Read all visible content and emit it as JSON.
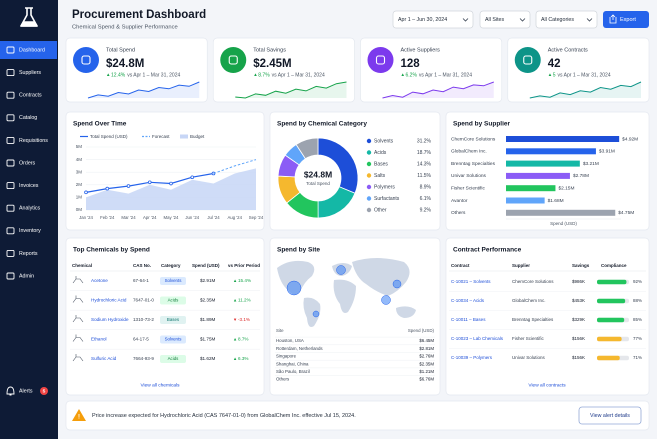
{
  "sidebar": {
    "nav": [
      "Dashboard",
      "Suppliers",
      "Contracts",
      "Catalog",
      "Requisitions",
      "Orders",
      "Invoices",
      "Analytics",
      "Inventory",
      "Reports",
      "Admin"
    ],
    "alerts": {
      "label": "Alerts",
      "count": "5"
    }
  },
  "header": {
    "title": "Procurement Dashboard",
    "subtitle": "Chemical Spend & Supplier Performance",
    "filters": [
      "Apr 1 – Jun 30, 2024",
      "All Sites",
      "All Categories"
    ],
    "export": "Export"
  },
  "kpis": [
    {
      "label": "Total Spend",
      "value": "$24.8M",
      "change": "12.4%",
      "compare": "vs Apr 1 – Mar 31, 2024",
      "color": "#2563eb",
      "trend": [
        3,
        4,
        3.6,
        4.8,
        4.3,
        5.6,
        5.1,
        6.4,
        6,
        7.2,
        6.8,
        8.2
      ]
    },
    {
      "label": "Total Savings",
      "value": "$2.45M",
      "change": "8.7%",
      "compare": "vs Apr 1 – Mar 31, 2024",
      "color": "#16a34a",
      "trend": [
        3.5,
        3.2,
        4.4,
        4,
        5.2,
        4.6,
        5.8,
        5.3,
        6.6,
        6.1,
        7.4,
        7.9
      ]
    },
    {
      "label": "Active Suppliers",
      "value": "128",
      "change": "6.2%",
      "compare": "vs Apr 1 – Mar 31, 2024",
      "color": "#7c3aed",
      "trend": [
        4,
        4.6,
        4.2,
        5.4,
        5,
        5.9,
        5.5,
        6.6,
        6.2,
        7.1,
        6.9,
        7.8
      ]
    },
    {
      "label": "Active Contracts",
      "value": "42",
      "change": "5",
      "compare": "vs Apr 1 – Mar 31, 2024",
      "color": "#0d9488",
      "trend": [
        3.8,
        4.3,
        4,
        5,
        4.6,
        5.5,
        5.2,
        6.3,
        5.9,
        6.8,
        6.5,
        7.6
      ]
    }
  ],
  "spend_over_time": {
    "type": "line",
    "title": "Spend Over Time",
    "categories": [
      "Jan '24",
      "Feb '24",
      "Mar '24",
      "Apr '24",
      "May '24",
      "Jun '24",
      "Jul '24",
      "Aug '24",
      "Sep '24"
    ],
    "series": [
      {
        "name": "Total Spend (USD)",
        "color": "#2563eb",
        "values": [
          1.4,
          1.7,
          1.9,
          2.2,
          2.1,
          2.6,
          2.9,
          null,
          null
        ]
      },
      {
        "name": "Forecast",
        "color": "#60a5fa",
        "values": [
          null,
          null,
          null,
          null,
          null,
          null,
          2.9,
          3.5,
          4.0
        ]
      },
      {
        "name": "Budget",
        "color": "#c7d6f6",
        "values": [
          1.0,
          1.6,
          1.3,
          2.0,
          1.6,
          2.4,
          2.1,
          2.9,
          3.3
        ]
      }
    ],
    "ylim": [
      0,
      5
    ],
    "yticks": [
      {
        "value": 0,
        "label": "0M"
      },
      {
        "value": 1,
        "label": "1M"
      },
      {
        "value": 2,
        "label": "2M"
      },
      {
        "value": 3,
        "label": "3M"
      },
      {
        "value": 4,
        "label": "4M"
      },
      {
        "value": 5,
        "label": "5M"
      }
    ]
  },
  "category_donut": {
    "type": "pie",
    "title": "Spend by Chemical Category",
    "center_value": "$24.8M",
    "center_label": "Total Spend",
    "categories": [
      "Solvents",
      "Acids",
      "Bases",
      "Salts",
      "Polymers",
      "Surfactants",
      "Other"
    ],
    "values": [
      31.2,
      18.7,
      14.3,
      11.5,
      8.9,
      6.1,
      9.2
    ],
    "value_labels": [
      "31.2%",
      "18.7%",
      "14.3%",
      "11.5%",
      "8.9%",
      "6.1%",
      "9.2%"
    ],
    "colors": [
      "#1d4ed8",
      "#14b8a6",
      "#22c55e",
      "#f5b82e",
      "#8b5cf6",
      "#60a5fa",
      "#9ca3af"
    ]
  },
  "supplier_bars": {
    "type": "bar",
    "title": "Spend by Supplier",
    "categories": [
      "ChemCore Solutions",
      "GlobalChem Inc.",
      "Brenntag Specialties",
      "Univar Solutions",
      "Fisher Scientific",
      "Avantor",
      "Others"
    ],
    "values": [
      4.92,
      3.91,
      3.21,
      2.78,
      2.15,
      1.68,
      4.75
    ],
    "value_labels": [
      "$4.92M",
      "$3.91M",
      "$3.21M",
      "$2.78M",
      "$2.15M",
      "$1.68M",
      "$4.75M"
    ],
    "colors": [
      "#1d4ed8",
      "#2563eb",
      "#14b8a6",
      "#8b5cf6",
      "#22c55e",
      "#60a5fa",
      "#9ca3af"
    ],
    "xlabel": "Spend (USD)",
    "xlim": [
      0,
      5
    ]
  },
  "top_chemicals": {
    "title": "Top Chemicals by Spend",
    "columns": [
      "Chemical",
      "CAS No.",
      "Category",
      "Spend (USD)",
      "vs Prior Period"
    ],
    "rows": [
      [
        "Acetone",
        "67-64-1",
        "Solvents",
        "$2.91M",
        "15.4%"
      ],
      [
        "Hydrochloric Acid",
        "7647-01-0",
        "Acids",
        "$2.35M",
        "11.2%"
      ],
      [
        "Sodium Hydroxide",
        "1310-73-2",
        "Bases",
        "$1.89M",
        "-3.1%"
      ],
      [
        "Ethanol",
        "64-17-5",
        "Solvents",
        "$1.75M",
        "8.7%"
      ],
      [
        "Sulfuric Acid",
        "7664-93-9",
        "Acids",
        "$1.62M",
        "6.3%"
      ]
    ],
    "link": "View all chemicals"
  },
  "spend_by_site": {
    "title": "Spend by Site",
    "columns": [
      "Site",
      "Spend (USD)"
    ],
    "rows": [
      [
        "Houston, USA",
        "$6.45M"
      ],
      [
        "Rotterdam, Netherlands",
        "$2.81M"
      ],
      [
        "Singapore",
        "$2.76M"
      ],
      [
        "Shanghai, China",
        "$2.35M"
      ],
      [
        "São Paulo, Brazil",
        "$1.21M"
      ],
      [
        "Others",
        "$6.76M"
      ]
    ]
  },
  "contracts": {
    "title": "Contract Performance",
    "columns": [
      "Contract",
      "Supplier",
      "Savings",
      "Compliance"
    ],
    "rows": [
      {
        "contract": "C-10021 – Solvents",
        "supplier": "ChemCore Solutions",
        "savings": "$986K",
        "compliance": 92,
        "compliance_label": "92%"
      },
      {
        "contract": "C-10034 – Acids",
        "supplier": "GlobalChem Inc.",
        "savings": "$453K",
        "compliance": 88,
        "compliance_label": "88%"
      },
      {
        "contract": "C-10011 – Bases",
        "supplier": "Brenntag Specialties",
        "savings": "$329K",
        "compliance": 85,
        "compliance_label": "85%"
      },
      {
        "contract": "C-10023 – Lab Chemicals",
        "supplier": "Fisher Scientific",
        "savings": "$156K",
        "compliance": 77,
        "compliance_label": "77%"
      },
      {
        "contract": "C-10039 – Polymers",
        "supplier": "Univar Solutions",
        "savings": "$156K",
        "compliance": 71,
        "compliance_label": "71%"
      }
    ],
    "link": "View all contracts"
  },
  "alert": {
    "message": "Price increase expected for Hydrochloric Acid (CAS 7647-01-0) from GlobalChem Inc. effective Jul 15, 2024.",
    "action": "View alert details"
  }
}
